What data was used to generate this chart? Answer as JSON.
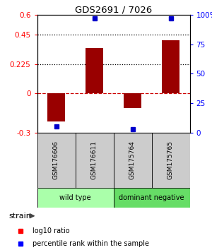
{
  "title": "GDS2691 / 7026",
  "samples": [
    "GSM176606",
    "GSM176611",
    "GSM175764",
    "GSM175765"
  ],
  "log10_ratio": [
    -0.215,
    0.345,
    -0.115,
    0.405
  ],
  "percentile_rank": [
    5.0,
    97.0,
    2.5,
    97.0
  ],
  "groups": [
    {
      "name": "wild type",
      "indices": [
        0,
        1
      ],
      "color": "#aaffaa"
    },
    {
      "name": "dominant negative",
      "indices": [
        2,
        3
      ],
      "color": "#66dd66"
    }
  ],
  "left_ylim": [
    -0.3,
    0.6
  ],
  "right_ylim": [
    0,
    100
  ],
  "left_yticks": [
    -0.3,
    0,
    0.225,
    0.45,
    0.6
  ],
  "left_ytick_labels": [
    "-0.3",
    "0",
    "0.225",
    "0.45",
    "0.6"
  ],
  "right_yticks": [
    0,
    25,
    50,
    75,
    100
  ],
  "right_ytick_labels": [
    "0",
    "25",
    "50",
    "75",
    "100%"
  ],
  "hlines_dotted": [
    0.225,
    0.45
  ],
  "hline_dashed_zero": 0.0,
  "bar_color": "#990000",
  "dot_color": "#0000cc",
  "bar_width": 0.45,
  "legend_bar_label": "log10 ratio",
  "legend_dot_label": "percentile rank within the sample",
  "strain_label": "strain",
  "sample_box_color": "#cccccc",
  "wild_type_color": "#aaffaa",
  "dominant_negative_color": "#66dd66"
}
